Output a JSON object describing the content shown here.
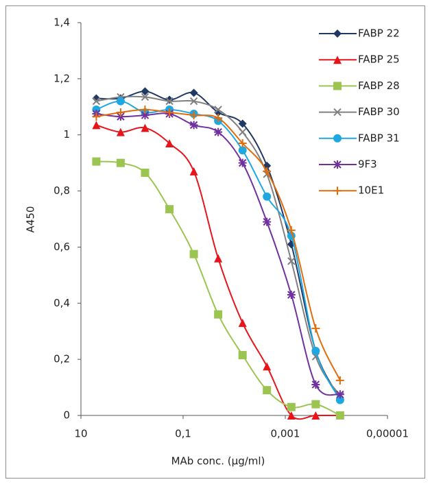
{
  "chart_data": {
    "type": "line",
    "xlabel": "MAb conc. (µg/ml)",
    "ylabel": "A450",
    "xscale": "log",
    "legend": "upper right",
    "x": [
      5,
      1.67,
      0.556,
      0.185,
      0.0617,
      0.0206,
      0.00686,
      0.00229,
      0.000762,
      0.000254,
      8.47e-05
    ],
    "xlim": [
      10,
      1e-05
    ],
    "xticks": [
      10,
      {
        "value": 0.1,
        "label": "0,1"
      },
      {
        "value": 0.001,
        "label": "0,001"
      },
      {
        "value": 1e-05,
        "label": "0,00001"
      }
    ],
    "ylim": [
      0,
      1.4
    ],
    "yticks": [
      0,
      {
        "value": 0.2,
        "label": "0,2"
      },
      {
        "value": 0.4,
        "label": "0,4"
      },
      {
        "value": 0.6,
        "label": "0,6"
      },
      {
        "value": 0.8,
        "label": "0,8"
      },
      {
        "value": 1,
        "label": "1"
      },
      {
        "value": 1.2,
        "label": "1,2"
      },
      {
        "value": 1.4,
        "label": "1,4"
      }
    ],
    "series": [
      {
        "name": "FABP 22",
        "color": "#1f3864",
        "marker": "diamond",
        "values": [
          1.13,
          1.13,
          1.155,
          1.125,
          1.15,
          1.08,
          1.04,
          0.89,
          0.61,
          0.23,
          0.06
        ]
      },
      {
        "name": "FABP 25",
        "color": "#e8141b",
        "marker": "triangle",
        "values": [
          1.035,
          1.01,
          1.025,
          0.97,
          0.87,
          0.56,
          0.33,
          0.175,
          0.0,
          0.0,
          0.0
        ]
      },
      {
        "name": "FABP 28",
        "color": "#9bc550",
        "marker": "square",
        "values": [
          0.905,
          0.9,
          0.865,
          0.735,
          0.575,
          0.36,
          0.215,
          0.09,
          0.03,
          0.04,
          0.0
        ]
      },
      {
        "name": "FABP 30",
        "color": "#808080",
        "marker": "x",
        "values": [
          1.12,
          1.135,
          1.135,
          1.12,
          1.12,
          1.09,
          1.01,
          0.86,
          0.55,
          0.21,
          0.07
        ]
      },
      {
        "name": "FABP 31",
        "color": "#1ea7e1",
        "marker": "circle",
        "values": [
          1.09,
          1.12,
          1.08,
          1.09,
          1.075,
          1.05,
          0.945,
          0.78,
          0.64,
          0.23,
          0.055
        ]
      },
      {
        "name": "9F3",
        "color": "#7030a0",
        "marker": "star",
        "values": [
          1.075,
          1.065,
          1.07,
          1.075,
          1.035,
          1.01,
          0.9,
          0.69,
          0.43,
          0.11,
          0.075
        ]
      },
      {
        "name": "10E1",
        "color": "#e36c0a",
        "marker": "plus",
        "values": [
          1.065,
          1.08,
          1.09,
          1.08,
          1.07,
          1.06,
          0.97,
          0.87,
          0.66,
          0.31,
          0.125
        ]
      }
    ]
  }
}
